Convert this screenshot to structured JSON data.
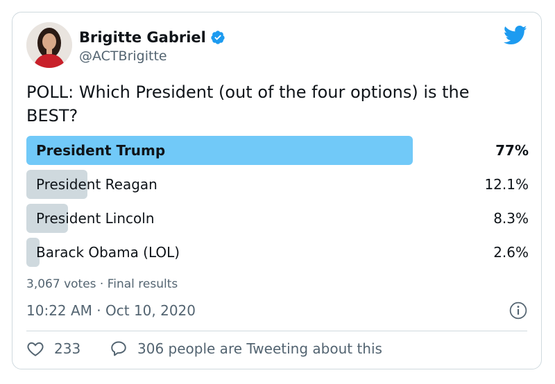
{
  "author": {
    "name": "Brigitte Gabriel",
    "handle": "@ACTBrigitte",
    "verified": true
  },
  "tweet": {
    "text": "POLL: Which President (out of the four options) is the BEST?"
  },
  "poll": {
    "options": [
      {
        "label": "President Trump",
        "percent_text": "77%",
        "percent": 77,
        "winner": true
      },
      {
        "label": "President Reagan",
        "percent_text": "12.1%",
        "percent": 12.1,
        "winner": false
      },
      {
        "label": "President Lincoln",
        "percent_text": "8.3%",
        "percent": 8.3,
        "winner": false
      },
      {
        "label": "Barack Obama (LOL)",
        "percent_text": "2.6%",
        "percent": 2.6,
        "winner": false
      }
    ],
    "summary": "3,067 votes · Final results"
  },
  "timestamp": "10:22 AM · Oct 10, 2020",
  "footer": {
    "likes": "233",
    "discussion": "306 people are Tweeting about this"
  },
  "colors": {
    "accent": "#1d9bf0",
    "winner_bar": "#71c9f8",
    "loser_bar": "#cfd9de",
    "muted_text": "#536471"
  },
  "icons": [
    "verified-badge-icon",
    "twitter-bird-icon",
    "info-icon",
    "heart-icon",
    "speech-bubble-icon"
  ]
}
